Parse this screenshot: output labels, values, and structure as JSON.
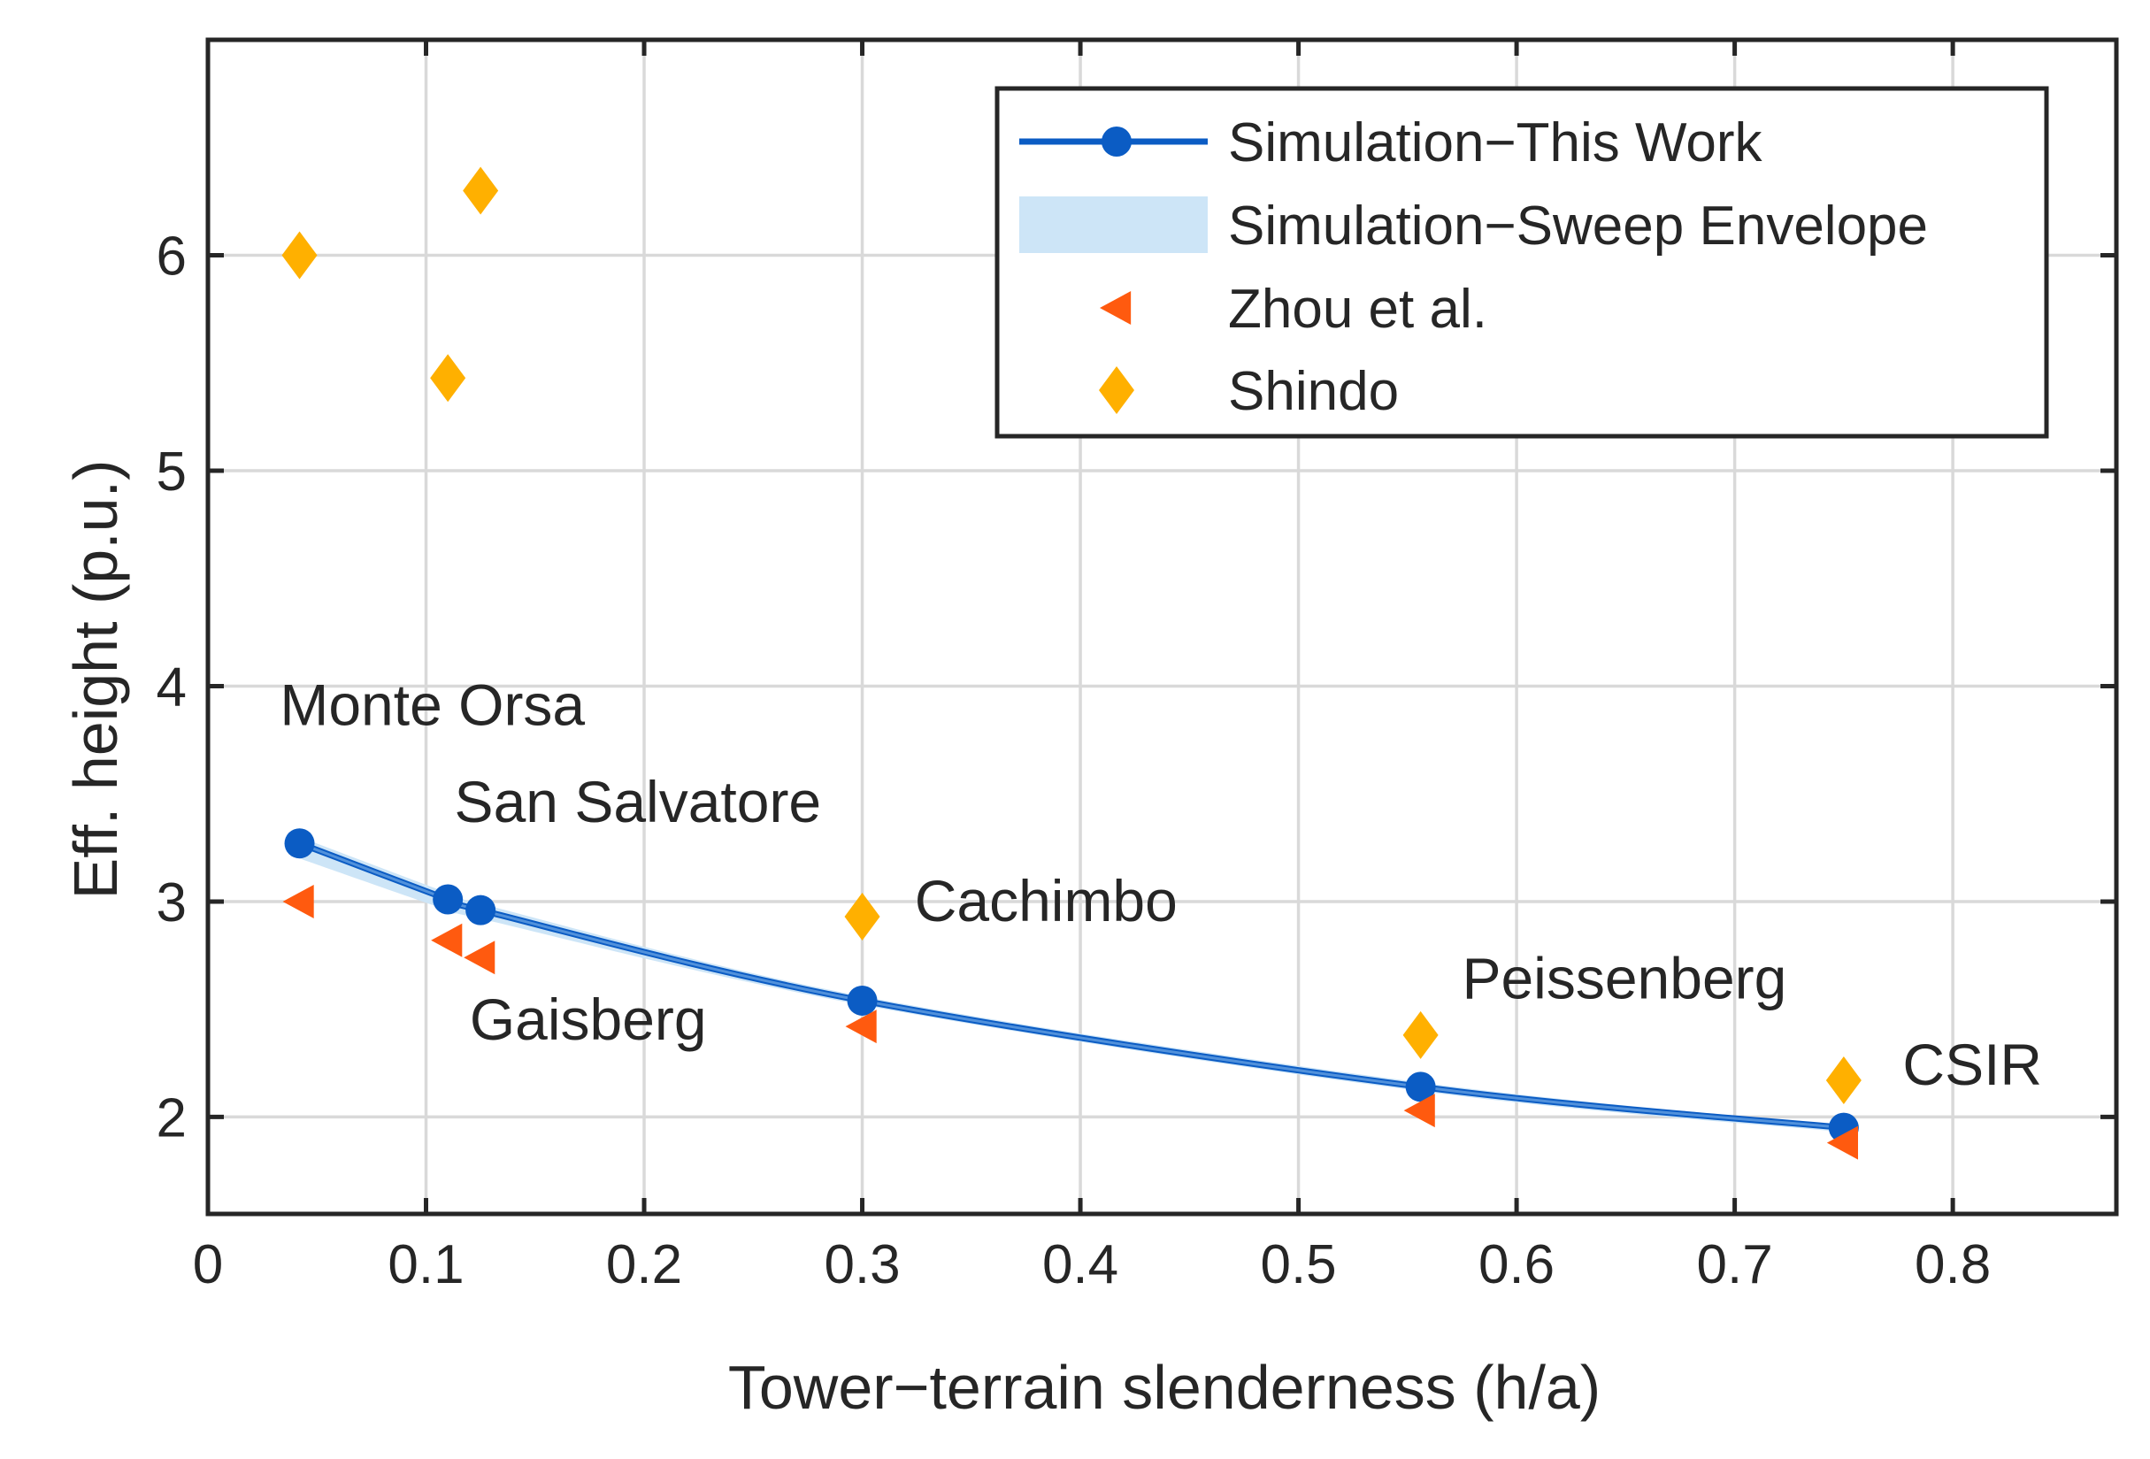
{
  "chart_data": {
    "type": "line",
    "title": "",
    "xlabel": "Tower−terrain slenderness (h/a)",
    "ylabel": "Eff. height (p.u.)",
    "xlim": [
      0,
      0.875
    ],
    "ylim": [
      1.55,
      7.0
    ],
    "xticks": [
      0,
      0.1,
      0.2,
      0.3,
      0.4,
      0.5,
      0.6,
      0.7,
      0.8
    ],
    "xtick_labels": [
      "0",
      "0.1",
      "0.2",
      "0.3",
      "0.4",
      "0.5",
      "0.6",
      "0.7",
      "0.8"
    ],
    "yticks": [
      2,
      3,
      4,
      5,
      6
    ],
    "ytick_labels": [
      "2",
      "3",
      "4",
      "5",
      "6"
    ],
    "grid": true,
    "legend_position": "top-right",
    "series": [
      {
        "name": "Simulation−This Work",
        "kind": "line-marker",
        "color": "#0b5cc4",
        "x": [
          0.042,
          0.11,
          0.125,
          0.3,
          0.556,
          0.75
        ],
        "y": [
          3.27,
          3.01,
          2.96,
          2.54,
          2.14,
          1.95
        ]
      },
      {
        "name": "Simulation−Sweep Envelope",
        "kind": "band",
        "color": "#cde5f7",
        "x": [
          0.042,
          0.11,
          0.125,
          0.3,
          0.556,
          0.75
        ],
        "lower": [
          3.2,
          2.96,
          2.92,
          2.52,
          2.12,
          1.93
        ],
        "upper": [
          3.3,
          3.04,
          2.99,
          2.56,
          2.16,
          1.96
        ]
      },
      {
        "name": "Zhou et al.",
        "kind": "marker-triangle-left",
        "color": "#ff5a0f",
        "x": [
          0.042,
          0.11,
          0.125,
          0.3,
          0.556,
          0.75
        ],
        "y": [
          3.0,
          2.82,
          2.74,
          2.42,
          2.03,
          1.88
        ]
      },
      {
        "name": "Shindo",
        "kind": "marker-diamond",
        "color": "#ffb000",
        "x": [
          0.042,
          0.11,
          0.125,
          0.3,
          0.556,
          0.75
        ],
        "y": [
          6.0,
          5.43,
          6.3,
          2.93,
          2.38,
          2.17
        ]
      }
    ],
    "annotations": [
      {
        "text": "Monte Orsa",
        "x": 0.033,
        "y": 3.82
      },
      {
        "text": "San Salvatore",
        "x": 0.113,
        "y": 3.37
      },
      {
        "text": "Gaisberg",
        "x": 0.12,
        "y": 2.36
      },
      {
        "text": "Cachimbo",
        "x": 0.324,
        "y": 2.91
      },
      {
        "text": "Peissenberg",
        "x": 0.575,
        "y": 2.55
      },
      {
        "text": "CSIR",
        "x": 0.777,
        "y": 2.15
      }
    ]
  }
}
